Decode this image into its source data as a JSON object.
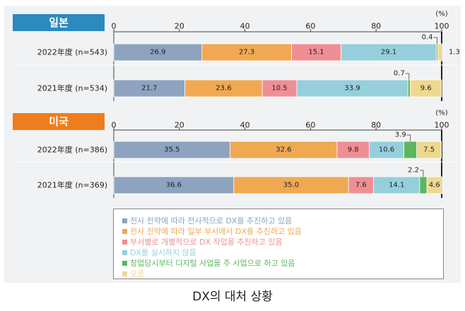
{
  "caption": "DX의 대처 상황",
  "legend": [
    {
      "label": "전사 전략에 따라 전사적으로 DX를 추진하고 있음",
      "color": "#8da3c0"
    },
    {
      "label": "전사 전략에 따라 일부 부서에서 DX를 추진하고 있음",
      "color": "#f0a853"
    },
    {
      "label": "부서별로 개별적으로 DX 작업을 추진하고 있음",
      "color": "#ef8f95"
    },
    {
      "label": "DX를 실시하지 않음",
      "color": "#96cfdc"
    },
    {
      "label": "창업당시부터 디지털 사업을 주 사업으로 하고 있음",
      "color": "#5bb65d"
    },
    {
      "label": "모름",
      "color": "#eed98f"
    }
  ],
  "chart_data": [
    {
      "type": "bar",
      "stacked": true,
      "orientation": "horizontal",
      "title": "일본",
      "title_color": "#2b8bbf",
      "unit": "(%)",
      "xlim": [
        0,
        100
      ],
      "ticks": [
        0,
        20,
        40,
        60,
        80,
        100
      ],
      "categories": [
        "2022年度 (n=543)",
        "2021年度 (n=534)"
      ],
      "series": [
        {
          "name": "전사 전략에 따라 전사적으로 DX를 추진하고 있음",
          "values": [
            26.9,
            21.7
          ]
        },
        {
          "name": "전사 전략에 따라 일부 부서에서 DX를 추진하고 있음",
          "values": [
            27.3,
            23.6
          ]
        },
        {
          "name": "부서별로 개별적으로 DX 작업을 추진하고 있음",
          "values": [
            15.1,
            10.5
          ]
        },
        {
          "name": "DX를 실시하지 않음",
          "values": [
            29.1,
            33.9
          ]
        },
        {
          "name": "창업당시부터 디지털 사업을 주 사업으로 하고 있음",
          "values": [
            0.4,
            0.7
          ]
        },
        {
          "name": "모름",
          "values": [
            1.3,
            9.6
          ]
        }
      ]
    },
    {
      "type": "bar",
      "stacked": true,
      "orientation": "horizontal",
      "title": "미국",
      "title_color": "#ee7d1e",
      "unit": "(%)",
      "xlim": [
        0,
        100
      ],
      "ticks": [
        0,
        20,
        40,
        60,
        80,
        100
      ],
      "categories": [
        "2022年度 (n=386)",
        "2021年度 (n=369)"
      ],
      "series": [
        {
          "name": "전사 전략에 따라 전사적으로 DX를 추진하고 있음",
          "values": [
            35.5,
            36.6
          ]
        },
        {
          "name": "전사 전략에 따라 일부 부서에서 DX를 추진하고 있음",
          "values": [
            32.6,
            35.0
          ]
        },
        {
          "name": "부서별로 개별적으로 DX 작업을 추진하고 있음",
          "values": [
            9.8,
            7.6
          ]
        },
        {
          "name": "DX를 실시하지 않음",
          "values": [
            10.6,
            14.1
          ]
        },
        {
          "name": "창업당시부터 디지털 사업을 주 사업으로 하고 있음",
          "values": [
            3.9,
            2.2
          ]
        },
        {
          "name": "모름",
          "values": [
            7.5,
            4.6
          ]
        }
      ]
    }
  ]
}
